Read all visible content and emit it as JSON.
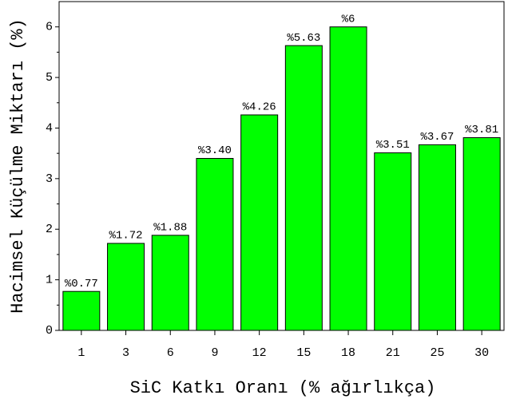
{
  "chart_data": {
    "type": "bar",
    "x_label": "SiC Katkı Oranı (% ağırlıkça)",
    "y_label": "Hacimsel Küçülme Miktarı (%)",
    "categories": [
      "1",
      "3",
      "6",
      "9",
      "12",
      "15",
      "18",
      "21",
      "25",
      "30"
    ],
    "values": [
      0.77,
      1.72,
      1.88,
      3.4,
      4.26,
      5.63,
      6,
      3.51,
      3.67,
      3.81
    ],
    "value_labels": [
      "%0.77",
      "%1.72",
      "%1.88",
      "%3.40",
      "%4.26",
      "%5.63",
      "%6",
      "%3.51",
      "%3.67",
      "%3.81"
    ],
    "color": "#00ff00",
    "ylim": [
      0,
      6.5
    ],
    "yticks": [
      0,
      1,
      2,
      3,
      4,
      5,
      6
    ],
    "yminorticks": [
      0.5,
      1.5,
      2.5,
      3.5,
      4.5,
      5.5
    ]
  }
}
